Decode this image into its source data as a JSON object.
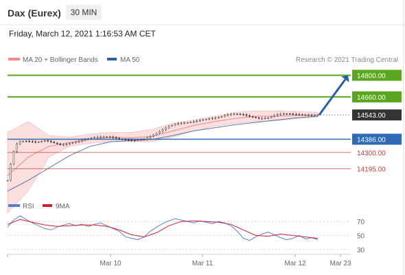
{
  "header": {
    "title": "Dax (Eurex)",
    "interval": "30 MIN",
    "datetime": "Friday, March 12, 2021 1:16:53 AM CET"
  },
  "legend": {
    "bollinger_label": "MA 20 + Bollinger Bands",
    "ma50_label": "MA 50",
    "credit": "Research © 2021 Trading Central",
    "rsi_label": "RSI",
    "rsi_ma_label": "9MA"
  },
  "colors": {
    "green": "#5aa61e",
    "blue": "#2e6ab5",
    "red": "#d9342b",
    "dark": "#333333",
    "band_fill": "#f9d4d4",
    "ma20": "#e88888",
    "rsi": "#5b7fd0",
    "rsi_ma": "#cc2030"
  },
  "chart_data": [
    {
      "type": "line",
      "title": "Dax (Eurex) 30 MIN",
      "x_ticks": [
        "Mar 10",
        "Mar 11",
        "Mar 12",
        "Mar 23"
      ],
      "ylim": [
        14050,
        14860
      ],
      "levels": [
        {
          "value": 14800,
          "label": "14800.00",
          "kind": "resistance",
          "color": "#5aa61e",
          "badge": true
        },
        {
          "value": 14660,
          "label": "14660.00",
          "kind": "resistance",
          "color": "#5aa61e",
          "badge": true
        },
        {
          "value": 14543,
          "label": "14543.00",
          "kind": "last",
          "color": "#333333",
          "badge": true
        },
        {
          "value": 14386,
          "label": "14386.00",
          "kind": "pivot",
          "color": "#2e6ab5",
          "badge": true
        },
        {
          "value": 14300,
          "label": "14300.00",
          "kind": "support",
          "color": "#d9342b",
          "badge": false
        },
        {
          "value": 14195,
          "label": "14195.00",
          "kind": "support",
          "color": "#d9342b",
          "badge": false
        }
      ],
      "price": {
        "t": [
          0,
          2,
          4,
          6,
          8,
          10,
          12,
          14,
          16,
          18,
          20,
          23,
          26,
          30,
          34,
          38,
          42,
          46,
          50,
          54,
          58,
          62,
          66,
          70,
          74,
          78,
          82,
          86,
          90,
          94,
          98,
          102,
          106,
          110,
          114,
          118,
          122,
          126,
          130,
          134,
          138,
          142,
          146,
          150
        ],
        "close": [
          14120,
          14260,
          14350,
          14370,
          14375,
          14372,
          14370,
          14365,
          14372,
          14378,
          14372,
          14360,
          14348,
          14358,
          14372,
          14388,
          14398,
          14402,
          14400,
          14388,
          14380,
          14378,
          14385,
          14410,
          14440,
          14470,
          14488,
          14492,
          14500,
          14512,
          14520,
          14528,
          14545,
          14550,
          14545,
          14530,
          14520,
          14525,
          14545,
          14552,
          14548,
          14545,
          14542,
          14543
        ]
      },
      "ma20": {
        "t": [
          0,
          10,
          20,
          30,
          40,
          50,
          60,
          70,
          80,
          90,
          100,
          110,
          120,
          130,
          140,
          150
        ],
        "values": [
          14150,
          14270,
          14340,
          14365,
          14385,
          14400,
          14395,
          14405,
          14440,
          14475,
          14500,
          14520,
          14535,
          14535,
          14540,
          14543
        ]
      },
      "bollinger_upper": {
        "t": [
          0,
          10,
          20,
          30,
          40,
          50,
          60,
          70,
          80,
          90,
          100,
          110,
          120,
          130,
          140,
          150
        ],
        "values": [
          14430,
          14500,
          14410,
          14400,
          14420,
          14430,
          14430,
          14450,
          14490,
          14510,
          14535,
          14560,
          14570,
          14570,
          14565,
          14560
        ]
      },
      "bollinger_lower": {
        "t": [
          0,
          10,
          20,
          30,
          40,
          50,
          60,
          70,
          80,
          90,
          100,
          110,
          120,
          130,
          140,
          150
        ],
        "values": [
          13910,
          14050,
          14270,
          14340,
          14360,
          14370,
          14370,
          14370,
          14400,
          14440,
          14470,
          14490,
          14500,
          14505,
          14520,
          14530
        ]
      },
      "ma50": {
        "t": [
          0,
          10,
          20,
          30,
          40,
          50,
          60,
          70,
          80,
          90,
          100,
          110,
          120,
          130,
          140,
          150
        ],
        "values": [
          14050,
          14120,
          14200,
          14280,
          14340,
          14370,
          14378,
          14385,
          14410,
          14440,
          14460,
          14480,
          14495,
          14510,
          14525,
          14535
        ]
      },
      "projection": {
        "from": 14543,
        "to": 14800
      }
    },
    {
      "type": "line",
      "title": "RSI",
      "ylim": [
        25,
        80
      ],
      "y_ticks": [
        70,
        50,
        30
      ],
      "rsi": {
        "t": [
          0,
          3,
          6,
          9,
          12,
          15,
          18,
          21,
          24,
          27,
          30,
          33,
          36,
          39,
          42,
          45,
          48,
          51,
          54,
          57,
          60,
          63,
          66,
          69,
          72,
          75,
          78,
          81,
          84,
          87,
          90,
          93,
          96,
          99,
          102,
          105,
          108,
          111,
          114,
          117,
          120,
          123,
          126,
          129,
          132,
          135,
          138,
          141,
          144,
          147,
          150
        ],
        "values": [
          62,
          72,
          78,
          73,
          68,
          64,
          60,
          58,
          62,
          65,
          67,
          64,
          66,
          63,
          66,
          68,
          64,
          60,
          56,
          48,
          46,
          44,
          48,
          56,
          62,
          67,
          71,
          74,
          72,
          70,
          68,
          71,
          69,
          67,
          70,
          68,
          64,
          56,
          46,
          43,
          48,
          52,
          55,
          51,
          47,
          44,
          46,
          50,
          45,
          47,
          44
        ]
      },
      "rsi_ma": {
        "t": [
          0,
          6,
          12,
          18,
          24,
          30,
          36,
          42,
          48,
          54,
          60,
          66,
          72,
          78,
          84,
          90,
          96,
          102,
          108,
          114,
          120,
          126,
          132,
          138,
          144,
          150
        ],
        "values": [
          66,
          73,
          69,
          65,
          63,
          64,
          65,
          65,
          63,
          58,
          51,
          48,
          54,
          64,
          70,
          71,
          70,
          69,
          66,
          58,
          50,
          49,
          52,
          50,
          48,
          46
        ]
      }
    }
  ]
}
